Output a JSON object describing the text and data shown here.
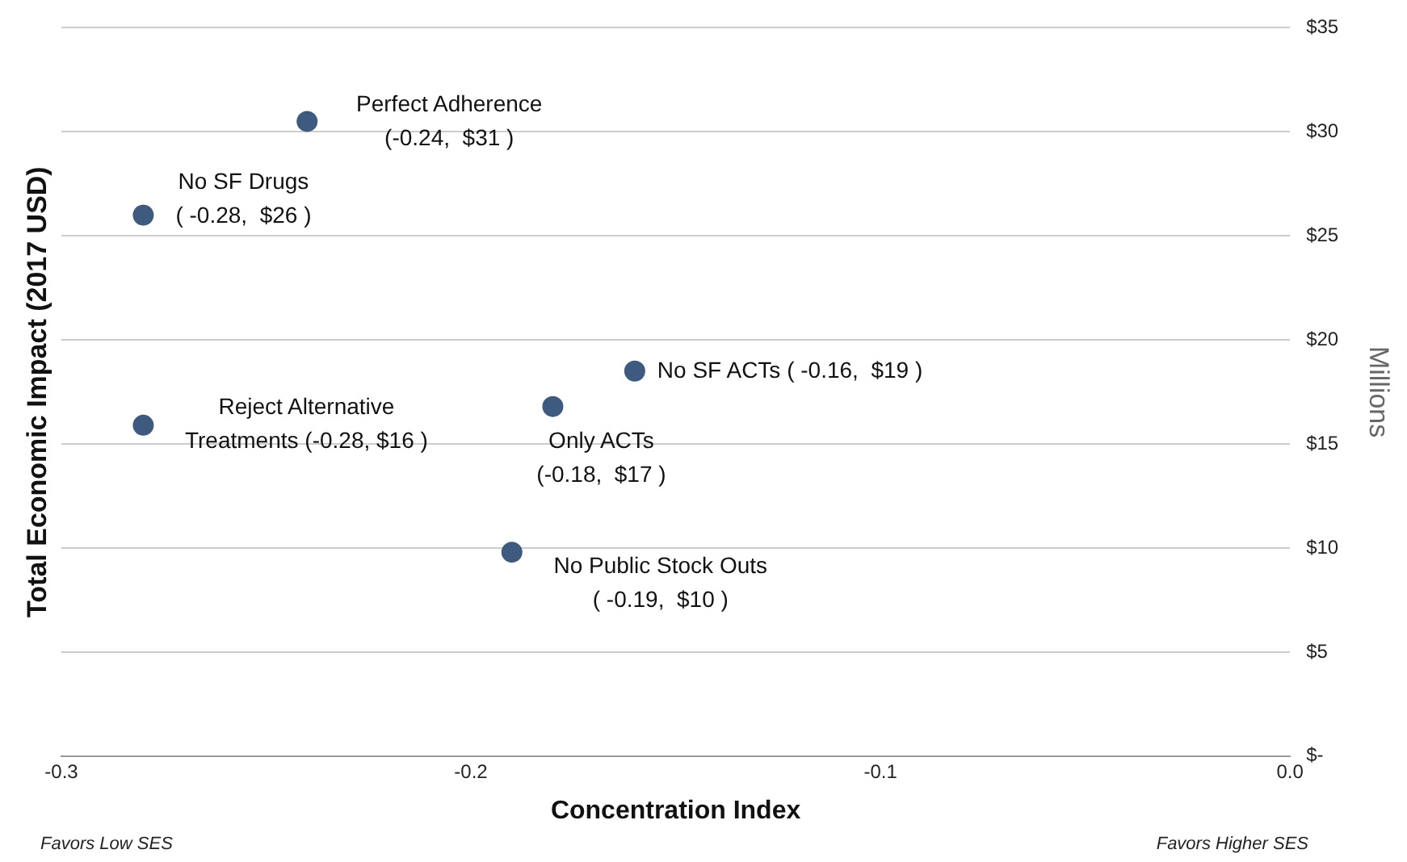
{
  "chart_data": {
    "type": "scatter",
    "ylabel": "Total Economic Impact (2017 USD)",
    "y2label": "Millions",
    "xlabel": "Concentration Index",
    "x": [
      -0.24,
      -0.28,
      -0.16,
      -0.18,
      -0.28,
      -0.19
    ],
    "values": [
      30.5,
      26.0,
      18.5,
      16.8,
      15.9,
      9.8
    ],
    "color": "#3e5a7e",
    "marker": "circle",
    "legend": false,
    "grid": "y",
    "xlim": [
      -0.3,
      0
    ],
    "xticks": [
      -0.3,
      -0.2,
      -0.1,
      {
        "value": 0,
        "label": "0.0"
      }
    ],
    "ylim": [
      0,
      35
    ],
    "yticks": [
      {
        "value": 0,
        "label": "$-"
      },
      {
        "value": 5,
        "label": "$5"
      },
      {
        "value": 10,
        "label": "$10"
      },
      {
        "value": 15,
        "label": "$15"
      },
      {
        "value": 20,
        "label": "$20"
      },
      {
        "value": 25,
        "label": "$25"
      },
      {
        "value": 30,
        "label": "$30"
      },
      {
        "value": 35,
        "label": "$35"
      }
    ],
    "annotations": [
      {
        "text": "Perfect Adherence\n(-0.24,  $31 )",
        "x": -0.24,
        "y": 30.5
      },
      {
        "text": "No SF Drugs\n( -0.28,  $26 )",
        "x": -0.28,
        "y": 26.0
      },
      {
        "text": "No SF ACTs ( -0.16,  $19 )",
        "x": -0.16,
        "y": 18.5
      },
      {
        "text": "Only ACTs\n(-0.18,  $17 )",
        "x": -0.18,
        "y": 16.8
      },
      {
        "text": "Reject Alternative\nTreatments (-0.28, $16 )",
        "x": -0.28,
        "y": 15.9
      },
      {
        "text": "No Public Stock Outs\n( -0.19,  $10 )",
        "x": -0.19,
        "y": 9.8
      },
      "Favors Low SES",
      "Favors Higher SES"
    ]
  }
}
